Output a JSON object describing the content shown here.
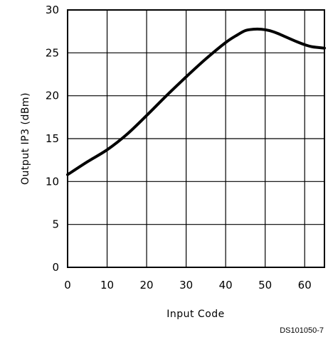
{
  "chart_data": {
    "type": "line",
    "title": "",
    "xlabel": "Input Code",
    "ylabel": "Output IP3 (dBm)",
    "xlim": [
      0,
      65
    ],
    "ylim": [
      0,
      30
    ],
    "grid": true,
    "x_ticks": [
      0,
      10,
      20,
      30,
      40,
      50,
      60
    ],
    "y_ticks": [
      0,
      5,
      10,
      15,
      20,
      25,
      30
    ],
    "series": [
      {
        "x": [
          0,
          5,
          10,
          15,
          20,
          25,
          30,
          35,
          40,
          43,
          45,
          47,
          49,
          51,
          53,
          55,
          58,
          60,
          62,
          65
        ],
        "y": [
          10.8,
          12.3,
          13.7,
          15.5,
          17.7,
          20.0,
          22.2,
          24.3,
          26.2,
          27.1,
          27.6,
          27.75,
          27.75,
          27.6,
          27.3,
          26.9,
          26.3,
          25.95,
          25.7,
          25.55
        ]
      }
    ],
    "figure_id": "DS101050-7"
  }
}
